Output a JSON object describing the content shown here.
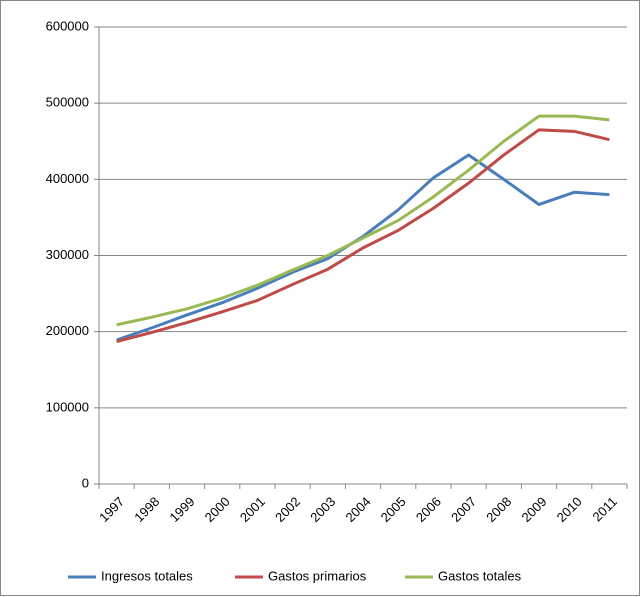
{
  "chart_data": {
    "type": "line",
    "categories": [
      "1997",
      "1998",
      "1999",
      "2000",
      "2001",
      "2002",
      "2003",
      "2004",
      "2005",
      "2006",
      "2007",
      "2008",
      "2009",
      "2010",
      "2011"
    ],
    "series": [
      {
        "name": "Ingresos totales",
        "color": "#4a7ebb",
        "values": [
          189000,
          205000,
          222000,
          238000,
          257000,
          278000,
          296000,
          325000,
          360000,
          402000,
          432000,
          400000,
          367000,
          383000,
          380000
        ]
      },
      {
        "name": "Gastos primarios",
        "color": "#be4b48",
        "values": [
          187000,
          199000,
          212000,
          226000,
          241000,
          262000,
          282000,
          310000,
          333000,
          362000,
          395000,
          432000,
          465000,
          463000,
          452000
        ]
      },
      {
        "name": "Gastos totales",
        "color": "#98b954",
        "values": [
          209000,
          219000,
          230000,
          244000,
          261000,
          281000,
          300000,
          323000,
          346000,
          377000,
          412000,
          450000,
          483000,
          483000,
          478000
        ]
      }
    ],
    "ylim": [
      0,
      600000
    ],
    "yticks": [
      0,
      100000,
      200000,
      300000,
      400000,
      500000,
      600000
    ],
    "grid": true,
    "legend": "bottom"
  }
}
